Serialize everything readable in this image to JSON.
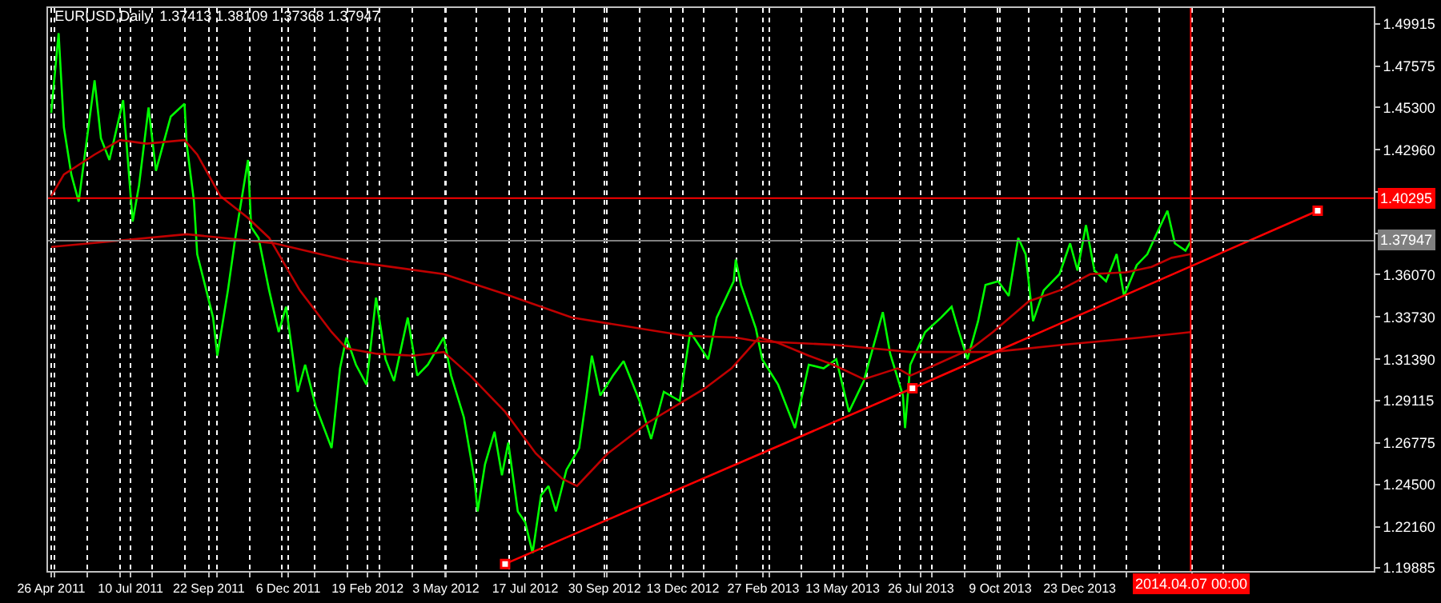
{
  "chart_data": {
    "type": "line",
    "title": "EURUSD,Daily  1.37413 1.38109 1.37368 1.37947",
    "xlim": [
      "2011-04-23",
      "2014-09-27"
    ],
    "ylim": [
      1.1971,
      1.5079
    ],
    "xticks": [
      {
        "value": "2011-04-26",
        "label": "26 Apr 2011"
      },
      {
        "value": "2011-07-10",
        "label": "10 Jul 2011"
      },
      {
        "value": "2011-09-22",
        "label": "22 Sep 2011"
      },
      {
        "value": "2011-12-06",
        "label": "6 Dec 2011"
      },
      {
        "value": "2012-02-19",
        "label": "19 Feb 2012"
      },
      {
        "value": "2012-05-03",
        "label": "3 May 2012"
      },
      {
        "value": "2012-07-17",
        "label": "17 Jul 2012"
      },
      {
        "value": "2012-09-30",
        "label": "30 Sep 2012"
      },
      {
        "value": "2012-12-13",
        "label": "13 Dec 2012"
      },
      {
        "value": "2013-02-27",
        "label": "27 Feb 2013"
      },
      {
        "value": "2013-05-13",
        "label": "13 May 2013"
      },
      {
        "value": "2013-07-26",
        "label": "26 Jul 2013"
      },
      {
        "value": "2013-10-09",
        "label": "9 Oct 2013"
      },
      {
        "value": "2013-12-23",
        "label": "23 Dec 2013"
      },
      {
        "value": "2011-04-29",
        "label": null
      },
      {
        "value": "2011-05-30",
        "label": null
      },
      {
        "value": "2011-06-30",
        "label": null
      },
      {
        "value": "2011-07-30",
        "label": null
      },
      {
        "value": "2011-08-30",
        "label": null
      },
      {
        "value": "2011-09-30",
        "label": null
      },
      {
        "value": "2011-10-31",
        "label": null
      },
      {
        "value": "2011-11-30",
        "label": null
      },
      {
        "value": "2011-12-31",
        "label": null
      },
      {
        "value": "2012-01-31",
        "label": null
      },
      {
        "value": "2012-03-01",
        "label": null
      },
      {
        "value": "2012-04-01",
        "label": null
      },
      {
        "value": "2012-05-02",
        "label": null
      },
      {
        "value": "2012-06-01",
        "label": null
      },
      {
        "value": "2012-07-02",
        "label": null
      },
      {
        "value": "2012-08-02",
        "label": null
      },
      {
        "value": "2012-09-01",
        "label": null
      },
      {
        "value": "2012-10-02",
        "label": null
      },
      {
        "value": "2012-11-02",
        "label": null
      },
      {
        "value": "2012-12-02",
        "label": null
      },
      {
        "value": "2013-01-02",
        "label": null
      },
      {
        "value": "2013-02-02",
        "label": null
      },
      {
        "value": "2013-03-05",
        "label": null
      },
      {
        "value": "2013-04-04",
        "label": null
      },
      {
        "value": "2013-05-05",
        "label": null
      },
      {
        "value": "2013-06-05",
        "label": null
      },
      {
        "value": "2013-07-06",
        "label": null
      },
      {
        "value": "2013-08-05",
        "label": null
      },
      {
        "value": "2013-09-05",
        "label": null
      },
      {
        "value": "2013-10-06",
        "label": null
      },
      {
        "value": "2013-11-05",
        "label": null
      },
      {
        "value": "2013-12-06",
        "label": null
      },
      {
        "value": "2014-01-06",
        "label": null
      },
      {
        "value": "2014-02-05",
        "label": null
      },
      {
        "value": "2014-03-08",
        "label": null
      },
      {
        "value": "2014-04-08",
        "label": null
      },
      {
        "value": "2014-05-08",
        "label": null
      }
    ],
    "yticks": [
      {
        "value": 1.49915,
        "label": "1.49915"
      },
      {
        "value": 1.47575,
        "label": "1.47575"
      },
      {
        "value": 1.453,
        "label": "1.45300"
      },
      {
        "value": 1.4296,
        "label": "1.42960"
      },
      {
        "value": 1.4062,
        "label": null
      },
      {
        "value": 1.38345,
        "label": null
      },
      {
        "value": 1.3607,
        "label": "1.36070"
      },
      {
        "value": 1.3373,
        "label": "1.33730"
      },
      {
        "value": 1.3139,
        "label": "1.31390"
      },
      {
        "value": 1.29115,
        "label": "1.29115"
      },
      {
        "value": 1.26775,
        "label": "1.26775"
      },
      {
        "value": 1.245,
        "label": "1.24500"
      },
      {
        "value": 1.2216,
        "label": "1.22160"
      },
      {
        "value": 1.19885,
        "label": "1.19885"
      }
    ],
    "grid": "x",
    "series": [
      {
        "color": "#00ff00",
        "x": [
          "2011-04-26",
          "2011-05-03",
          "2011-05-08",
          "2011-05-15",
          "2011-05-22",
          "2011-06-06",
          "2011-06-12",
          "2011-06-20",
          "2011-07-03",
          "2011-07-12",
          "2011-07-18",
          "2011-07-27",
          "2011-08-03",
          "2011-08-17",
          "2011-08-30",
          "2011-09-01",
          "2011-09-08",
          "2011-09-11",
          "2011-09-26",
          "2011-09-30",
          "2011-10-10",
          "2011-10-17",
          "2011-10-29",
          "2011-11-01",
          "2011-11-08",
          "2011-11-18",
          "2011-11-27",
          "2011-12-04",
          "2011-12-15",
          "2011-12-22",
          "2012-01-01",
          "2012-01-16",
          "2012-01-24",
          "2012-01-30",
          "2012-02-08",
          "2012-02-18",
          "2012-02-27",
          "2012-03-07",
          "2012-03-15",
          "2012-03-28",
          "2012-04-06",
          "2012-04-16",
          "2012-05-01",
          "2012-05-08",
          "2012-05-20",
          "2012-05-30",
          "2012-06-02",
          "2012-06-09",
          "2012-06-18",
          "2012-06-25",
          "2012-07-01",
          "2012-07-10",
          "2012-07-17",
          "2012-07-24",
          "2012-08-01",
          "2012-08-08",
          "2012-08-15",
          "2012-08-25",
          "2012-09-06",
          "2012-09-13",
          "2012-09-18",
          "2012-09-26",
          "2012-10-08",
          "2012-10-18",
          "2012-11-02",
          "2012-11-13",
          "2012-11-25",
          "2012-12-10",
          "2012-12-20",
          "2013-01-06",
          "2013-01-14",
          "2013-01-30",
          "2013-02-01",
          "2013-02-06",
          "2013-02-20",
          "2013-02-26",
          "2013-03-13",
          "2013-03-29",
          "2013-04-11",
          "2013-04-25",
          "2013-05-07",
          "2013-05-19",
          "2013-06-02",
          "2013-06-20",
          "2013-06-27",
          "2013-07-09",
          "2013-07-11",
          "2013-07-16",
          "2013-07-30",
          "2013-08-14",
          "2013-08-24",
          "2013-08-31",
          "2013-09-08",
          "2013-09-18",
          "2013-09-25",
          "2013-10-07",
          "2013-10-17",
          "2013-10-26",
          "2013-11-02",
          "2013-11-09",
          "2013-11-19",
          "2013-12-04",
          "2013-12-14",
          "2013-12-21",
          "2013-12-29",
          "2014-01-06",
          "2014-01-17",
          "2014-01-27",
          "2014-02-03",
          "2014-02-15",
          "2014-02-25",
          "2014-03-04",
          "2014-03-16",
          "2014-03-23",
          "2014-04-02",
          "2014-04-07"
        ],
        "values": [
          1.45,
          1.494,
          1.442,
          1.416,
          1.401,
          1.468,
          1.436,
          1.424,
          1.457,
          1.39,
          1.41,
          1.453,
          1.418,
          1.448,
          1.455,
          1.433,
          1.401,
          1.372,
          1.337,
          1.316,
          1.352,
          1.381,
          1.424,
          1.387,
          1.381,
          1.352,
          1.329,
          1.343,
          1.296,
          1.311,
          1.288,
          1.265,
          1.309,
          1.326,
          1.311,
          1.3,
          1.348,
          1.314,
          1.302,
          1.337,
          1.305,
          1.311,
          1.326,
          1.305,
          1.282,
          1.248,
          1.23,
          1.256,
          1.274,
          1.25,
          1.268,
          1.23,
          1.224,
          1.207,
          1.239,
          1.244,
          1.23,
          1.253,
          1.265,
          1.294,
          1.316,
          1.294,
          1.305,
          1.313,
          1.291,
          1.27,
          1.296,
          1.291,
          1.329,
          1.314,
          1.337,
          1.357,
          1.369,
          1.355,
          1.331,
          1.314,
          1.3,
          1.276,
          1.311,
          1.309,
          1.314,
          1.285,
          1.302,
          1.34,
          1.317,
          1.294,
          1.276,
          1.311,
          1.329,
          1.337,
          1.343,
          1.329,
          1.314,
          1.335,
          1.355,
          1.357,
          1.349,
          1.381,
          1.372,
          1.335,
          1.352,
          1.361,
          1.378,
          1.363,
          1.388,
          1.363,
          1.357,
          1.372,
          1.349,
          1.366,
          1.372,
          1.381,
          1.396,
          1.378,
          1.374,
          1.379
        ]
      },
      {
        "color": "#c00000",
        "x": [
          "2011-04-26",
          "2011-05-08",
          "2011-06-06",
          "2011-06-30",
          "2011-07-25",
          "2011-08-30",
          "2011-09-11",
          "2011-10-03",
          "2011-10-29",
          "2011-11-18",
          "2011-12-17",
          "2012-01-16",
          "2012-01-30",
          "2012-02-28",
          "2012-04-02",
          "2012-05-01",
          "2012-05-26",
          "2012-06-28",
          "2012-07-27",
          "2012-08-21",
          "2012-09-04",
          "2012-10-03",
          "2012-11-10",
          "2013-01-03",
          "2013-01-28",
          "2013-02-23",
          "2013-03-13",
          "2013-04-11",
          "2013-05-04",
          "2013-06-02",
          "2013-07-04",
          "2013-07-16",
          "2013-08-09",
          "2013-09-12",
          "2013-10-02",
          "2013-11-05",
          "2013-12-04",
          "2014-01-02",
          "2014-02-05",
          "2014-03-01",
          "2014-03-20",
          "2014-04-07"
        ],
        "values": [
          1.404,
          1.416,
          1.427,
          1.435,
          1.433,
          1.435,
          1.427,
          1.404,
          1.392,
          1.381,
          1.352,
          1.329,
          1.32,
          1.317,
          1.316,
          1.318,
          1.305,
          1.285,
          1.262,
          1.248,
          1.244,
          1.262,
          1.279,
          1.298,
          1.309,
          1.326,
          1.323,
          1.316,
          1.311,
          1.303,
          1.309,
          1.305,
          1.311,
          1.32,
          1.329,
          1.346,
          1.352,
          1.361,
          1.362,
          1.365,
          1.37,
          1.372
        ]
      },
      {
        "color": "#c00000",
        "x": [
          "2011-04-26",
          "2011-06-20",
          "2011-09-01",
          "2011-10-06",
          "2011-11-23",
          "2012-02-04",
          "2012-05-01",
          "2012-06-28",
          "2012-08-30",
          "2012-12-15",
          "2013-02-01",
          "2013-02-20",
          "2013-05-04",
          "2013-07-16",
          "2013-10-02",
          "2013-12-08",
          "2014-02-19",
          "2014-04-07"
        ],
        "values": [
          1.376,
          1.379,
          1.383,
          1.381,
          1.378,
          1.368,
          1.361,
          1.35,
          1.337,
          1.327,
          1.326,
          1.324,
          1.322,
          1.318,
          1.318,
          1.322,
          1.326,
          1.329
        ]
      },
      {
        "color": "#ff0000",
        "marker": "square",
        "x": [
          "2012-06-28",
          "2013-07-18",
          "2014-08-05"
        ],
        "values": [
          1.201,
          1.298,
          1.396
        ]
      }
    ],
    "ref_lines": [
      {
        "axis": "y",
        "value": 1.40295,
        "label": "1.40295",
        "color": "#ff0000",
        "line_style": "solid"
      },
      {
        "axis": "y",
        "value": 1.37947,
        "label": "1.37947",
        "color": "#808080",
        "line_style": "solid"
      },
      {
        "axis": "x",
        "value": "2014-04-07",
        "label": "2014.04.07 00:00",
        "color": "#ff0000",
        "line_style": "solid"
      }
    ]
  }
}
